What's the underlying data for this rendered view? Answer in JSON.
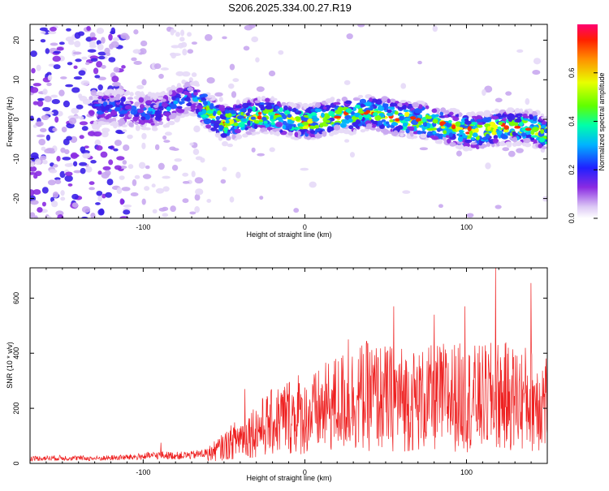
{
  "title": "S206.2025.334.00.27.R19",
  "chart_data": [
    {
      "type": "heatmap",
      "name": "spectrogram",
      "xlabel": "Height of straight line (km)",
      "ylabel": "Frequency (Hz)",
      "xlim": [
        -170,
        150
      ],
      "ylim": [
        -25,
        24
      ],
      "x_ticks": [
        -100,
        0,
        100
      ],
      "y_ticks": [
        -20,
        -10,
        0,
        10,
        20
      ],
      "ridge": {
        "x": [
          -170,
          -120,
          -100,
          -90,
          -80,
          -70,
          -60,
          -50,
          -40,
          -30,
          -20,
          -10,
          0,
          10,
          20,
          30,
          40,
          50,
          60,
          70,
          80,
          90,
          100,
          110,
          120,
          130,
          140,
          150
        ],
        "freq": [
          0,
          3,
          2,
          2,
          4,
          6,
          2,
          -1,
          0,
          1,
          1,
          0,
          -1,
          0,
          1,
          1,
          2,
          1,
          0,
          0,
          -1,
          -2,
          -3,
          -3,
          -2,
          -2,
          -2,
          -4
        ]
      },
      "colorbar": {
        "label": "Normalized spectral amplitude",
        "range": [
          0,
          0.8
        ],
        "ticks": [
          0.0,
          0.2,
          0.4,
          0.6
        ],
        "tick_labels": [
          "0.0",
          "0.2",
          "0.4",
          "0.6"
        ]
      }
    },
    {
      "type": "line",
      "name": "snr",
      "xlabel": "Height of straight line (km)",
      "ylabel": "SNR (10 * v/v)",
      "xlim": [
        -170,
        150
      ],
      "ylim": [
        0,
        710
      ],
      "x_ticks": [
        -100,
        0,
        100
      ],
      "y_ticks": [
        0,
        200,
        400,
        600
      ],
      "color": "#ee2020",
      "series": [
        {
          "name": "SNR",
          "x": [
            -170,
            -150,
            -130,
            -110,
            -100,
            -90,
            -80,
            -70,
            -60,
            -50,
            -40,
            -30,
            -20,
            -10,
            0,
            10,
            20,
            30,
            40,
            50,
            60,
            70,
            80,
            90,
            100,
            110,
            120,
            130,
            140,
            150
          ],
          "values": [
            18,
            20,
            18,
            22,
            25,
            30,
            28,
            30,
            38,
            70,
            110,
            140,
            170,
            200,
            190,
            220,
            250,
            270,
            280,
            270,
            270,
            260,
            270,
            280,
            270,
            270,
            280,
            270,
            270,
            260
          ],
          "peaks": [
            {
              "x": -89,
              "value": 75
            },
            {
              "x": -37,
              "value": 270
            },
            {
              "x": -21,
              "value": 250
            },
            {
              "x": -4,
              "value": 320
            },
            {
              "x": 27,
              "value": 450
            },
            {
              "x": 55,
              "value": 570
            },
            {
              "x": 80,
              "value": 540
            },
            {
              "x": 99,
              "value": 570
            },
            {
              "x": 118,
              "value": 710
            },
            {
              "x": 140,
              "value": 655
            }
          ]
        }
      ]
    }
  ]
}
